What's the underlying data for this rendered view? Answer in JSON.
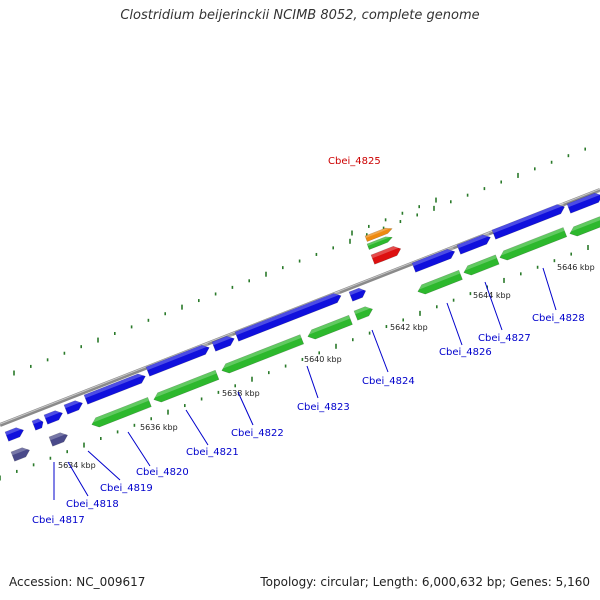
{
  "title": "Clostridium beijerinckii NCIMB 8052, complete genome",
  "footer": {
    "accession": "Accession: NC_009617",
    "summary": "Topology: circular; Length: 6,000,632 bp; Genes: 5,160"
  },
  "colors": {
    "backbone": "#8a8a8a",
    "forward_cds": "#1010dd",
    "reverse_cds": "#2db82d",
    "highlight_gene": "#dd1010",
    "highlight_label": "#cc0000",
    "orange_feature": "#ee8a10",
    "purple_feature": "#4a4a8a",
    "label": "#0000cc",
    "tick": "#2a7a2a"
  },
  "ticks": [
    {
      "label": "5634 kbp"
    },
    {
      "label": "5636 kbp"
    },
    {
      "label": "5638 kbp"
    },
    {
      "label": "5640 kbp"
    },
    {
      "label": "5642 kbp"
    },
    {
      "label": "5644 kbp"
    },
    {
      "label": "5646 kbp"
    }
  ],
  "genes": [
    {
      "label": "Cbei_4817",
      "highlight": false
    },
    {
      "label": "Cbei_4818",
      "highlight": false
    },
    {
      "label": "Cbei_4819",
      "highlight": false
    },
    {
      "label": "Cbei_4820",
      "highlight": false
    },
    {
      "label": "Cbei_4821",
      "highlight": false
    },
    {
      "label": "Cbei_4822",
      "highlight": false
    },
    {
      "label": "Cbei_4823",
      "highlight": false
    },
    {
      "label": "Cbei_4824",
      "highlight": false
    },
    {
      "label": "Cbei_4825",
      "highlight": true
    },
    {
      "label": "Cbei_4826",
      "highlight": false
    },
    {
      "label": "Cbei_4827",
      "highlight": false
    },
    {
      "label": "Cbei_4828",
      "highlight": false
    }
  ]
}
